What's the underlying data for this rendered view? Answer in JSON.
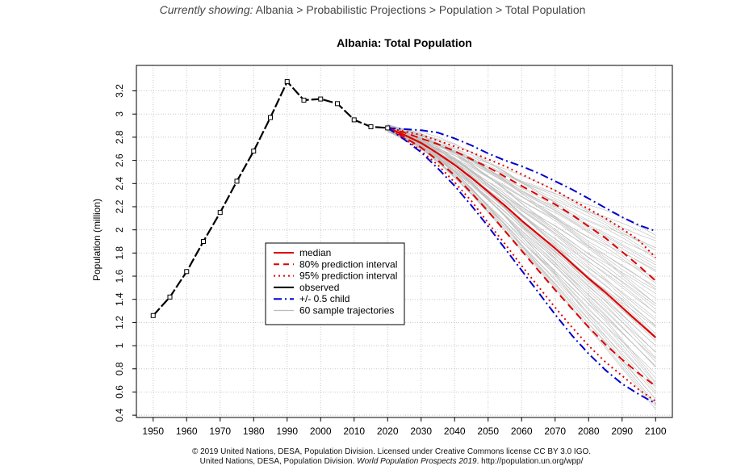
{
  "breadcrumb": {
    "lead": "Currently showing:",
    "path": [
      "Albania",
      "Probabilistic Projections",
      "Population",
      "Total Population"
    ],
    "separator": " > "
  },
  "chart_data": {
    "type": "line",
    "title": "Albania: Total Population",
    "ylabel": "Population (million)",
    "xlabel": "",
    "xlim": [
      1945,
      2105
    ],
    "ylim": [
      0.38,
      3.42
    ],
    "x_ticks": [
      1950,
      1960,
      1970,
      1980,
      1990,
      2000,
      2010,
      2020,
      2030,
      2040,
      2050,
      2060,
      2070,
      2080,
      2090,
      2100
    ],
    "y_ticks": [
      0.4,
      0.6,
      0.8,
      1,
      1.2,
      1.4,
      1.6,
      1.8,
      2,
      2.2,
      2.4,
      2.6,
      2.8,
      3,
      3.2
    ],
    "grid": true,
    "legend_position": "center-left",
    "legend": [
      {
        "label": "median",
        "color": "#dd0000",
        "style": "solid"
      },
      {
        "label": "80% prediction interval",
        "color": "#dd0000",
        "style": "dashed"
      },
      {
        "label": "95% prediction interval",
        "color": "#dd0000",
        "style": "dotted"
      },
      {
        "label": "observed",
        "color": "#000000",
        "style": "solid"
      },
      {
        "label": "+/- 0.5 child",
        "color": "#0000cc",
        "style": "dashdot"
      },
      {
        "label": "60 sample trajectories",
        "color": "#bbbbbb",
        "style": "solid"
      }
    ],
    "observed": {
      "x": [
        1950,
        1955,
        1960,
        1965,
        1970,
        1975,
        1980,
        1985,
        1990,
        1995,
        2000,
        2005,
        2010,
        2015,
        2020
      ],
      "y": [
        1.26,
        1.42,
        1.64,
        1.9,
        2.15,
        2.42,
        2.68,
        2.97,
        3.28,
        3.12,
        3.13,
        3.09,
        2.95,
        2.89,
        2.88
      ]
    },
    "projection_x": [
      2020,
      2025,
      2030,
      2035,
      2040,
      2045,
      2050,
      2055,
      2060,
      2065,
      2070,
      2075,
      2080,
      2085,
      2090,
      2095,
      2100
    ],
    "series": [
      {
        "name": "median",
        "values": [
          2.88,
          2.82,
          2.75,
          2.66,
          2.56,
          2.45,
          2.33,
          2.21,
          2.08,
          1.96,
          1.84,
          1.71,
          1.58,
          1.46,
          1.33,
          1.2,
          1.07
        ]
      },
      {
        "name": "80% prediction interval upper",
        "values": [
          2.88,
          2.84,
          2.79,
          2.74,
          2.68,
          2.61,
          2.54,
          2.46,
          2.38,
          2.3,
          2.22,
          2.13,
          2.03,
          1.93,
          1.81,
          1.69,
          1.56
        ]
      },
      {
        "name": "80% prediction interval lower",
        "values": [
          2.88,
          2.8,
          2.71,
          2.6,
          2.47,
          2.32,
          2.16,
          1.99,
          1.82,
          1.65,
          1.48,
          1.32,
          1.16,
          1.01,
          0.88,
          0.76,
          0.65
        ]
      },
      {
        "name": "95% prediction interval upper",
        "values": [
          2.88,
          2.85,
          2.82,
          2.77,
          2.72,
          2.67,
          2.61,
          2.55,
          2.48,
          2.41,
          2.34,
          2.26,
          2.18,
          2.1,
          2.01,
          1.91,
          1.76
        ]
      },
      {
        "name": "95% prediction interval lower",
        "values": [
          2.88,
          2.79,
          2.68,
          2.56,
          2.41,
          2.25,
          2.06,
          1.88,
          1.69,
          1.51,
          1.33,
          1.16,
          1.0,
          0.86,
          0.74,
          0.62,
          0.52
        ]
      },
      {
        "name": "+/- 0.5 child upper",
        "values": [
          2.88,
          2.87,
          2.86,
          2.84,
          2.79,
          2.73,
          2.66,
          2.6,
          2.55,
          2.49,
          2.42,
          2.35,
          2.27,
          2.19,
          2.11,
          2.04,
          1.99
        ]
      },
      {
        "name": "+/- 0.5 child lower",
        "values": [
          2.88,
          2.78,
          2.67,
          2.53,
          2.38,
          2.21,
          2.03,
          1.84,
          1.65,
          1.46,
          1.27,
          1.09,
          0.93,
          0.79,
          0.67,
          0.58,
          0.5
        ]
      }
    ],
    "sample_trajectory_count": 60,
    "sample_trajectory_range": {
      "y_2100_min": 0.45,
      "y_2100_max": 1.95
    }
  },
  "footer": {
    "line1": "© 2019 United Nations, DESA, Population Division. Licensed under Creative Commons license CC BY 3.0 IGO.",
    "line2_prefix": "United Nations, DESA, Population Division.",
    "line2_title": "World Population Prospects 2019",
    "line2_suffix": ". http://population.un.org/wpp/"
  }
}
